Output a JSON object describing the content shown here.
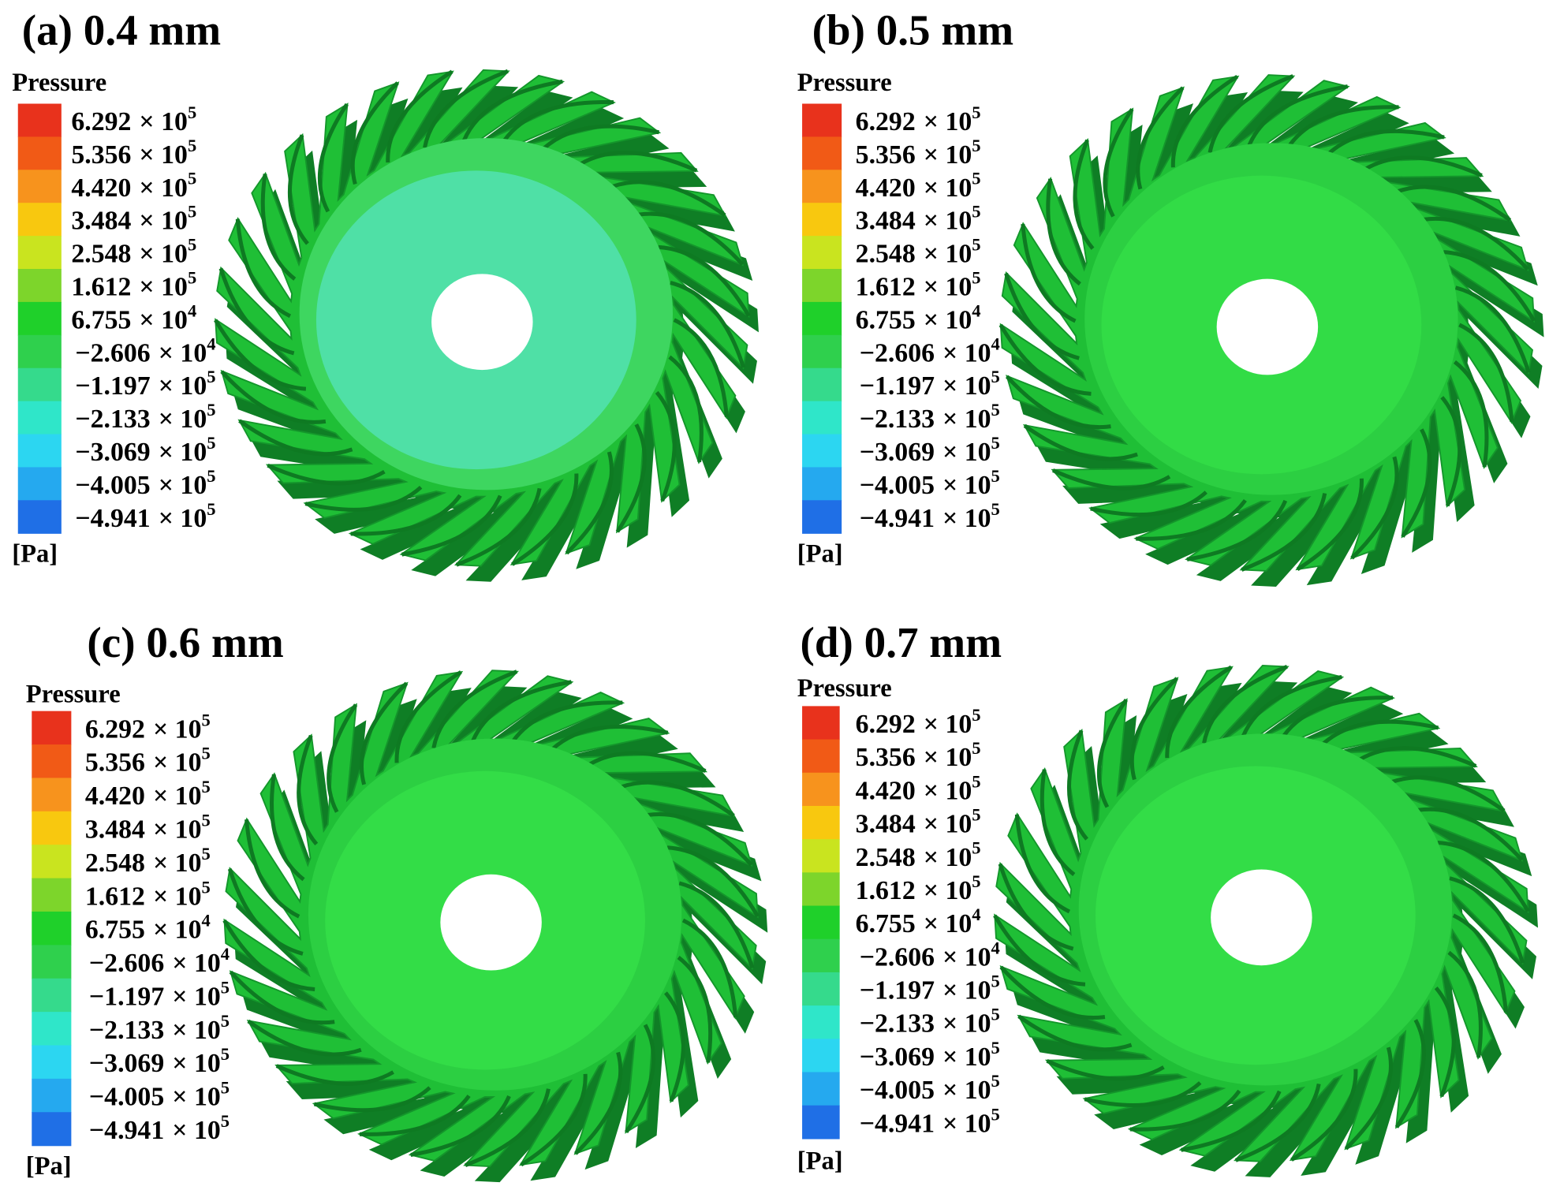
{
  "panels": [
    {
      "title": "(a) 0.4 mm"
    },
    {
      "title": "(b) 0.5 mm"
    },
    {
      "title": "(c) 0.6 mm"
    },
    {
      "title": "(d) 0.7 mm"
    }
  ],
  "legend": {
    "title": "Pressure",
    "unit": "[Pa]",
    "multiplier": "× 10",
    "labels": [
      {
        "mantissa": "6.292",
        "exponent": "5"
      },
      {
        "mantissa": "5.356",
        "exponent": "5"
      },
      {
        "mantissa": "4.420",
        "exponent": "5"
      },
      {
        "mantissa": "3.484",
        "exponent": "5"
      },
      {
        "mantissa": "2.548",
        "exponent": "5"
      },
      {
        "mantissa": "1.612",
        "exponent": "5"
      },
      {
        "mantissa": "6.755",
        "exponent": "4"
      },
      {
        "mantissa": "−2.606",
        "exponent": "4"
      },
      {
        "mantissa": "−1.197",
        "exponent": "5"
      },
      {
        "mantissa": "−2.133",
        "exponent": "5"
      },
      {
        "mantissa": "−3.069",
        "exponent": "5"
      },
      {
        "mantissa": "−4.005",
        "exponent": "5"
      },
      {
        "mantissa": "−4.941",
        "exponent": "5"
      }
    ]
  }
}
